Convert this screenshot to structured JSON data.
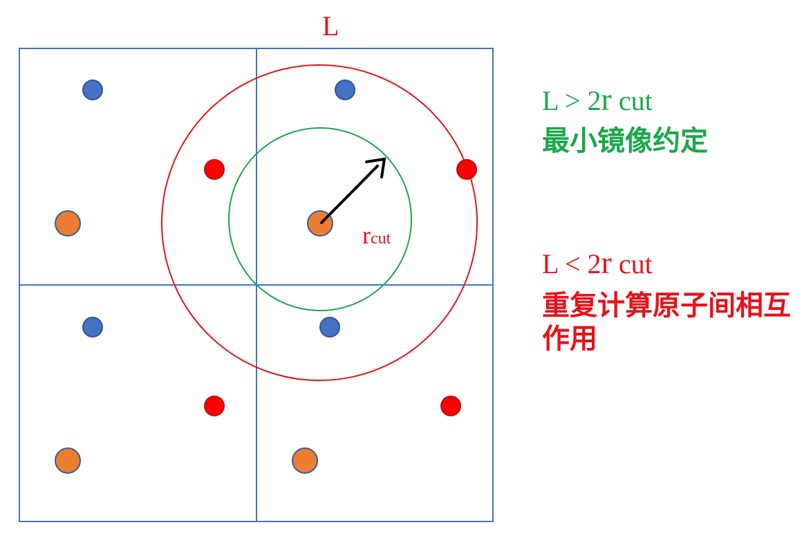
{
  "colors": {
    "box_lines": "#4472c4",
    "large_circle": "#e8121a",
    "small_circle": "#1aa84a",
    "arrow": "#000000",
    "blue_atom": "#4472c4",
    "red_atom": "#ff0000",
    "orange_atom": "#ed7d31",
    "green_text": "#1aa84a",
    "red_text": "#e8121a"
  },
  "labels": {
    "box_length": "L",
    "rcut_main": "r",
    "rcut_sub": "cut"
  },
  "conditions": [
    {
      "prefix": "L > 2",
      "r": "r",
      "suffix": " cut",
      "description": "最小镜像约定",
      "color": "green"
    },
    {
      "prefix": "L < 2",
      "r": "r",
      "suffix": " cut",
      "description": "重复计算原子间相互作用",
      "color": "red"
    }
  ],
  "atoms_per_cell": [
    "blue",
    "red",
    "orange"
  ],
  "icons": {
    "arrow": "arrow-up-right-icon"
  }
}
